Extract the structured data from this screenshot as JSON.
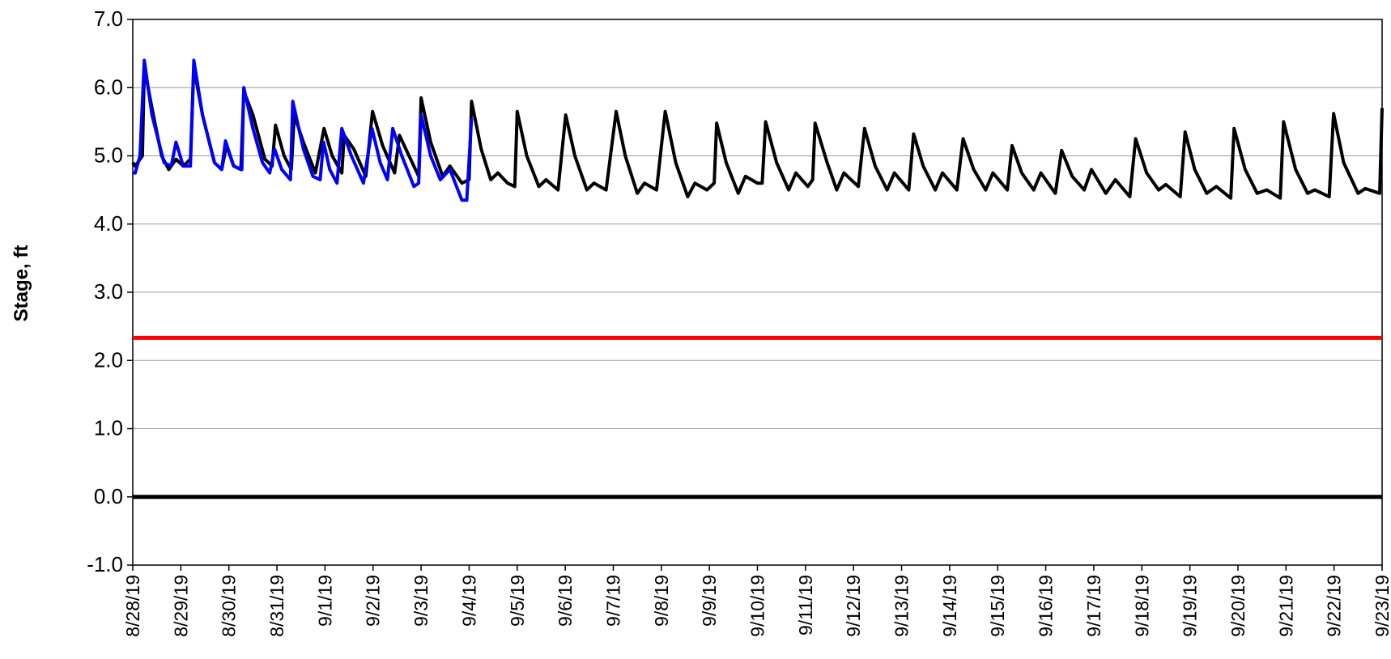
{
  "chart_data": {
    "type": "line",
    "y_label": "Stage, ft",
    "xlim": [
      0,
      26
    ],
    "ylim": [
      -1,
      7
    ],
    "grid": true,
    "yticks": [
      {
        "value": -1,
        "label": "-1.0"
      },
      {
        "value": 0,
        "label": "0.0"
      },
      {
        "value": 1,
        "label": "1.0"
      },
      {
        "value": 2,
        "label": "2.0"
      },
      {
        "value": 3,
        "label": "3.0"
      },
      {
        "value": 4,
        "label": "4.0"
      },
      {
        "value": 5,
        "label": "5.0"
      },
      {
        "value": 6,
        "label": "6.0"
      },
      {
        "value": 7,
        "label": "7.0"
      }
    ],
    "xticks": [
      {
        "value": 0,
        "label": "8/28/19"
      },
      {
        "value": 1,
        "label": "8/29/19"
      },
      {
        "value": 2,
        "label": "8/30/19"
      },
      {
        "value": 3,
        "label": "8/31/19"
      },
      {
        "value": 4,
        "label": "9/1/19"
      },
      {
        "value": 5,
        "label": "9/2/19"
      },
      {
        "value": 6,
        "label": "9/3/19"
      },
      {
        "value": 7,
        "label": "9/4/19"
      },
      {
        "value": 8,
        "label": "9/5/19"
      },
      {
        "value": 9,
        "label": "9/6/19"
      },
      {
        "value": 10,
        "label": "9/7/19"
      },
      {
        "value": 11,
        "label": "9/8/19"
      },
      {
        "value": 12,
        "label": "9/9/19"
      },
      {
        "value": 13,
        "label": "9/10/19"
      },
      {
        "value": 14,
        "label": "9/11/19"
      },
      {
        "value": 15,
        "label": "9/12/19"
      },
      {
        "value": 16,
        "label": "9/13/19"
      },
      {
        "value": 17,
        "label": "9/14/19"
      },
      {
        "value": 18,
        "label": "9/15/19"
      },
      {
        "value": 19,
        "label": "9/16/19"
      },
      {
        "value": 20,
        "label": "9/17/19"
      },
      {
        "value": 21,
        "label": "9/18/19"
      },
      {
        "value": 22,
        "label": "9/19/19"
      },
      {
        "value": 23,
        "label": "9/20/19"
      },
      {
        "value": 24,
        "label": "9/21/19"
      },
      {
        "value": 25,
        "label": "9/22/19"
      },
      {
        "value": 26,
        "label": "9/23/19"
      }
    ],
    "series": [
      {
        "color": "#ff0000",
        "width": 5,
        "x": [
          0,
          26
        ],
        "values": [
          2.33,
          2.33
        ]
      },
      {
        "color": "#000000",
        "width": 5,
        "x": [
          0,
          26
        ],
        "values": [
          0,
          0
        ]
      },
      {
        "color": "#000000",
        "width": 4,
        "x": [
          0,
          0.05,
          0.2,
          0.24,
          0.4,
          0.6,
          0.75,
          0.9,
          1.05,
          1.2,
          1.27,
          1.45,
          1.7,
          1.85,
          1.95,
          2.1,
          2.25,
          2.31,
          2.5,
          2.75,
          2.9,
          2.97,
          3.15,
          3.3,
          3.36,
          3.55,
          3.8,
          3.98,
          4.15,
          4.35,
          4.4,
          4.6,
          4.85,
          4.99,
          5.2,
          5.45,
          5.55,
          5.75,
          5.95,
          6.0,
          6.2,
          6.45,
          6.6,
          6.85,
          7.0,
          7.05,
          7.25,
          7.45,
          7.6,
          7.8,
          7.95,
          8.0,
          8.2,
          8.45,
          8.6,
          8.85,
          9.01,
          9.2,
          9.45,
          9.6,
          9.85,
          10.06,
          10.25,
          10.5,
          10.65,
          10.9,
          11.08,
          11.3,
          11.55,
          11.7,
          11.95,
          12.1,
          12.15,
          12.35,
          12.6,
          12.75,
          13.0,
          13.1,
          13.17,
          13.4,
          13.65,
          13.8,
          14.05,
          14.15,
          14.2,
          14.45,
          14.65,
          14.8,
          15.1,
          15.23,
          15.45,
          15.7,
          15.85,
          16.15,
          16.25,
          16.45,
          16.7,
          16.85,
          17.15,
          17.28,
          17.5,
          17.75,
          17.9,
          18.2,
          18.3,
          18.5,
          18.75,
          18.9,
          19.2,
          19.33,
          19.55,
          19.8,
          19.95,
          20.25,
          20.45,
          20.75,
          20.87,
          21.1,
          21.35,
          21.5,
          21.8,
          21.9,
          22.1,
          22.35,
          22.55,
          22.85,
          22.92,
          23.15,
          23.4,
          23.6,
          23.88,
          23.95,
          24.2,
          24.45,
          24.6,
          24.9,
          24.99,
          25.2,
          25.5,
          25.65,
          25.95,
          26
        ],
        "values": [
          4.9,
          4.85,
          5.0,
          6.3,
          5.7,
          5.0,
          4.8,
          4.95,
          4.85,
          4.95,
          6.3,
          5.6,
          4.9,
          4.8,
          5.15,
          4.85,
          4.8,
          5.95,
          5.6,
          4.95,
          4.85,
          5.45,
          5.0,
          4.8,
          5.6,
          5.2,
          4.75,
          5.4,
          5.0,
          4.75,
          5.3,
          5.1,
          4.7,
          5.65,
          5.15,
          4.75,
          5.3,
          5.0,
          4.7,
          5.85,
          5.2,
          4.7,
          4.85,
          4.6,
          4.65,
          5.8,
          5.1,
          4.65,
          4.75,
          4.6,
          4.55,
          5.65,
          5.0,
          4.55,
          4.65,
          4.5,
          5.6,
          5.0,
          4.5,
          4.6,
          4.5,
          5.65,
          5.0,
          4.45,
          4.6,
          4.5,
          5.65,
          4.9,
          4.4,
          4.6,
          4.5,
          4.6,
          5.48,
          4.9,
          4.45,
          4.7,
          4.6,
          4.6,
          5.5,
          4.9,
          4.5,
          4.75,
          4.55,
          4.65,
          5.48,
          4.9,
          4.5,
          4.75,
          4.55,
          5.4,
          4.85,
          4.5,
          4.75,
          4.5,
          5.32,
          4.85,
          4.5,
          4.75,
          4.5,
          5.25,
          4.8,
          4.5,
          4.75,
          4.5,
          5.15,
          4.75,
          4.5,
          4.75,
          4.45,
          5.08,
          4.7,
          4.5,
          4.8,
          4.45,
          4.65,
          4.4,
          5.25,
          4.75,
          4.5,
          4.58,
          4.4,
          5.35,
          4.8,
          4.45,
          4.55,
          4.38,
          5.4,
          4.8,
          4.45,
          4.5,
          4.38,
          5.5,
          4.8,
          4.45,
          4.5,
          4.4,
          5.62,
          4.9,
          4.45,
          4.52,
          4.45,
          5.7
        ]
      },
      {
        "color": "#0000ff",
        "width": 4,
        "x": [
          0,
          0.05,
          0.15,
          0.24,
          0.4,
          0.65,
          0.8,
          0.9,
          1.05,
          1.2,
          1.27,
          1.45,
          1.7,
          1.85,
          1.93,
          2.1,
          2.27,
          2.31,
          2.5,
          2.7,
          2.85,
          2.95,
          3.1,
          3.28,
          3.33,
          3.55,
          3.75,
          3.9,
          3.97,
          4.1,
          4.25,
          4.35,
          4.55,
          4.8,
          4.98,
          5.15,
          5.3,
          5.41,
          5.6,
          5.85,
          5.95,
          6.0,
          6.2,
          6.4,
          6.6,
          6.85,
          6.95,
          7.05
        ],
        "values": [
          4.75,
          4.75,
          5.0,
          6.4,
          5.6,
          4.9,
          4.85,
          5.2,
          4.85,
          4.85,
          6.4,
          5.6,
          4.9,
          4.8,
          5.22,
          4.85,
          4.8,
          6.0,
          5.4,
          4.9,
          4.75,
          5.1,
          4.8,
          4.65,
          5.8,
          5.1,
          4.7,
          4.65,
          5.2,
          4.8,
          4.6,
          5.4,
          5.0,
          4.6,
          5.4,
          4.9,
          4.65,
          5.4,
          5.0,
          4.55,
          4.6,
          5.6,
          5.0,
          4.65,
          4.8,
          4.35,
          4.35,
          5.55
        ]
      }
    ]
  }
}
